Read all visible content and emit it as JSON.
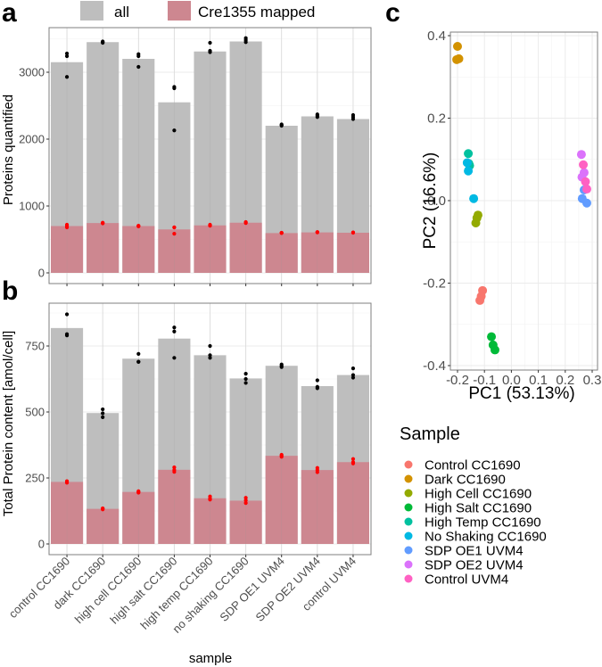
{
  "chart_data": [
    {
      "id": "a",
      "panel_label": "a",
      "type": "bar",
      "title": "",
      "xlabel": "",
      "ylabel": "Proteins quantified",
      "ylim": [
        0,
        3600
      ],
      "yticks": [
        0,
        1000,
        2000,
        3000
      ],
      "grid": true,
      "legend": {
        "position": "top",
        "entries": [
          {
            "label": "all",
            "color": "#bebebe"
          },
          {
            "label": "Cre1355 mapped",
            "color": "#cd8790"
          }
        ]
      },
      "categories": [
        "control CC1690",
        "dark CC1690",
        "high cell CC1690",
        "high salt CC1690",
        "high temp CC1690",
        "no shaking CC1690",
        "SDP OE1 UVM4",
        "SDP OE2 UVM4",
        "control UVM4"
      ],
      "series": [
        {
          "name": "all",
          "color": "#bebebe",
          "values": [
            3150,
            3450,
            3200,
            2550,
            3310,
            3460,
            2200,
            2340,
            2300
          ]
        },
        {
          "name": "Cre1355 mapped",
          "color": "#cd8790",
          "values": [
            700,
            745,
            700,
            650,
            710,
            750,
            595,
            605,
            600
          ]
        }
      ],
      "replicates": {
        "all": [
          [
            3280,
            3240,
            2930
          ],
          [
            3460,
            3450,
            3440
          ],
          [
            3270,
            3240,
            3080
          ],
          [
            2780,
            2760,
            2130
          ],
          [
            3440,
            3320,
            3300
          ],
          [
            3510,
            3480,
            3450
          ],
          [
            2220,
            2210,
            2200
          ],
          [
            2370,
            2350,
            2330
          ],
          [
            2360,
            2330,
            2300
          ]
        ],
        "Cre1355 mapped": [
          [
            720,
            700,
            680
          ],
          [
            750,
            745,
            740
          ],
          [
            705,
            700,
            695
          ],
          [
            680,
            680,
            585
          ],
          [
            720,
            710,
            705
          ],
          [
            760,
            750,
            745
          ],
          [
            600,
            598,
            595
          ],
          [
            610,
            608,
            605
          ],
          [
            605,
            602,
            600
          ]
        ]
      }
    },
    {
      "id": "b",
      "panel_label": "b",
      "type": "bar",
      "title": "",
      "xlabel": "sample",
      "ylabel": "Total Protein content [amol/cell]",
      "ylim": [
        0,
        900
      ],
      "yticks": [
        0,
        250,
        500,
        750
      ],
      "grid": true,
      "categories": [
        "control CC1690",
        "dark CC1690",
        "high cell CC1690",
        "high salt CC1690",
        "high temp CC1690",
        "no shaking CC1690",
        "SDP OE1 UVM4",
        "SDP OE2 UVM4",
        "control UVM4"
      ],
      "series": [
        {
          "name": "all",
          "color": "#bebebe",
          "values": [
            818,
            496,
            702,
            778,
            715,
            627,
            675,
            598,
            640
          ]
        },
        {
          "name": "Cre1355 mapped",
          "color": "#cd8790",
          "values": [
            235,
            133,
            197,
            281,
            173,
            164,
            334,
            280,
            310
          ]
        }
      ],
      "replicates": {
        "all": [
          [
            870,
            795,
            790
          ],
          [
            510,
            495,
            480
          ],
          [
            720,
            690,
            690
          ],
          [
            820,
            805,
            705
          ],
          [
            750,
            715,
            705
          ],
          [
            645,
            625,
            610
          ],
          [
            680,
            675,
            670
          ],
          [
            620,
            595,
            590
          ],
          [
            665,
            640,
            630
          ]
        ],
        "Cre1355 mapped": [
          [
            238,
            235,
            232
          ],
          [
            135,
            133,
            131
          ],
          [
            200,
            197,
            194
          ],
          [
            290,
            280,
            273
          ],
          [
            180,
            172,
            168
          ],
          [
            175,
            165,
            155
          ],
          [
            338,
            334,
            330
          ],
          [
            288,
            280,
            272
          ],
          [
            322,
            310,
            305
          ]
        ]
      }
    },
    {
      "id": "c",
      "panel_label": "c",
      "type": "scatter",
      "title": "",
      "xlabel": "PC1 (53.13%)",
      "ylabel": "PC2 (16.6%)",
      "xlim": [
        -0.225,
        0.31
      ],
      "ylim": [
        -0.41,
        0.41
      ],
      "xticks": [
        -0.2,
        -0.1,
        0.0,
        0.1,
        0.2,
        0.3
      ],
      "xtick_labels": [
        "-0.2",
        "-0.1",
        "0.0",
        "0.1",
        "0.2",
        "0.3"
      ],
      "yticks": [
        -0.4,
        -0.2,
        0.0,
        0.2,
        0.4
      ],
      "ytick_labels": [
        "-0.4",
        "-0.2",
        "0.0",
        "0.2",
        "0.4"
      ],
      "grid": true,
      "legend": {
        "title": "Sample",
        "position": "bottom-right"
      },
      "series": [
        {
          "name": "Control CC1690",
          "color": "#f8766d",
          "points": [
            [
              -0.107,
              -0.218
            ],
            [
              -0.112,
              -0.232
            ],
            [
              -0.117,
              -0.242
            ]
          ]
        },
        {
          "name": "Dark CC1690",
          "color": "#d39200",
          "points": [
            [
              -0.2,
              0.374
            ],
            [
              -0.203,
              0.342
            ],
            [
              -0.195,
              0.344
            ]
          ]
        },
        {
          "name": "High Cell CC1690",
          "color": "#93aa00",
          "points": [
            [
              -0.124,
              -0.035
            ],
            [
              -0.128,
              -0.042
            ],
            [
              -0.132,
              -0.054
            ]
          ]
        },
        {
          "name": "High Salt CC1690",
          "color": "#00ba38",
          "points": [
            [
              -0.074,
              -0.33
            ],
            [
              -0.068,
              -0.35
            ],
            [
              -0.061,
              -0.362
            ]
          ]
        },
        {
          "name": "High Temp CC1690",
          "color": "#00c19f",
          "points": [
            [
              -0.16,
              0.114
            ],
            [
              -0.155,
              0.085
            ],
            [
              -0.158,
              0.09
            ]
          ]
        },
        {
          "name": "No Shaking CC1690",
          "color": "#00b9e3",
          "points": [
            [
              -0.164,
              0.092
            ],
            [
              -0.16,
              0.072
            ],
            [
              -0.14,
              0.005
            ]
          ]
        },
        {
          "name": "SDP OE1 UVM4",
          "color": "#619cff",
          "points": [
            [
              0.27,
              0.026
            ],
            [
              0.263,
              0.005
            ],
            [
              0.28,
              -0.006
            ]
          ]
        },
        {
          "name": "SDP OE2 UVM4",
          "color": "#db72fb",
          "points": [
            [
              0.26,
              0.112
            ],
            [
              0.27,
              0.068
            ],
            [
              0.262,
              0.057
            ]
          ]
        },
        {
          "name": "Control UVM4",
          "color": "#ff61c3",
          "points": [
            [
              0.267,
              0.087
            ],
            [
              0.275,
              0.046
            ],
            [
              0.28,
              0.028
            ]
          ]
        }
      ]
    }
  ]
}
